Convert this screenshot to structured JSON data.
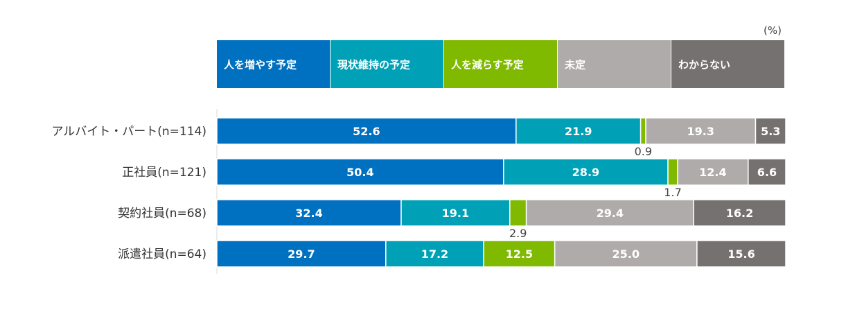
{
  "chart_data": {
    "type": "bar",
    "orientation": "horizontal",
    "stacked": true,
    "unit": "(%)",
    "xlim": [
      0,
      100
    ],
    "grid": false,
    "legend_position": "top",
    "categories": [
      "アルバイト・パート(n=114)",
      "正社員(n=121)",
      "契約社員(n=68)",
      "派遣社員(n=64)"
    ],
    "series": [
      {
        "name": "人を増やす予定",
        "color": "#0070c0",
        "values": [
          52.6,
          50.4,
          32.4,
          29.7
        ]
      },
      {
        "name": "現状維持の予定",
        "color": "#00a1b6",
        "values": [
          21.9,
          28.9,
          19.1,
          17.2
        ]
      },
      {
        "name": "人を減らす予定",
        "color": "#7fba00",
        "values": [
          0.9,
          1.7,
          2.9,
          12.5
        ]
      },
      {
        "name": "未定",
        "color": "#afabab",
        "values": [
          19.3,
          12.4,
          29.4,
          25.0
        ]
      },
      {
        "name": "わからない",
        "color": "#767171",
        "values": [
          5.3,
          6.6,
          16.2,
          15.6
        ]
      }
    ]
  }
}
